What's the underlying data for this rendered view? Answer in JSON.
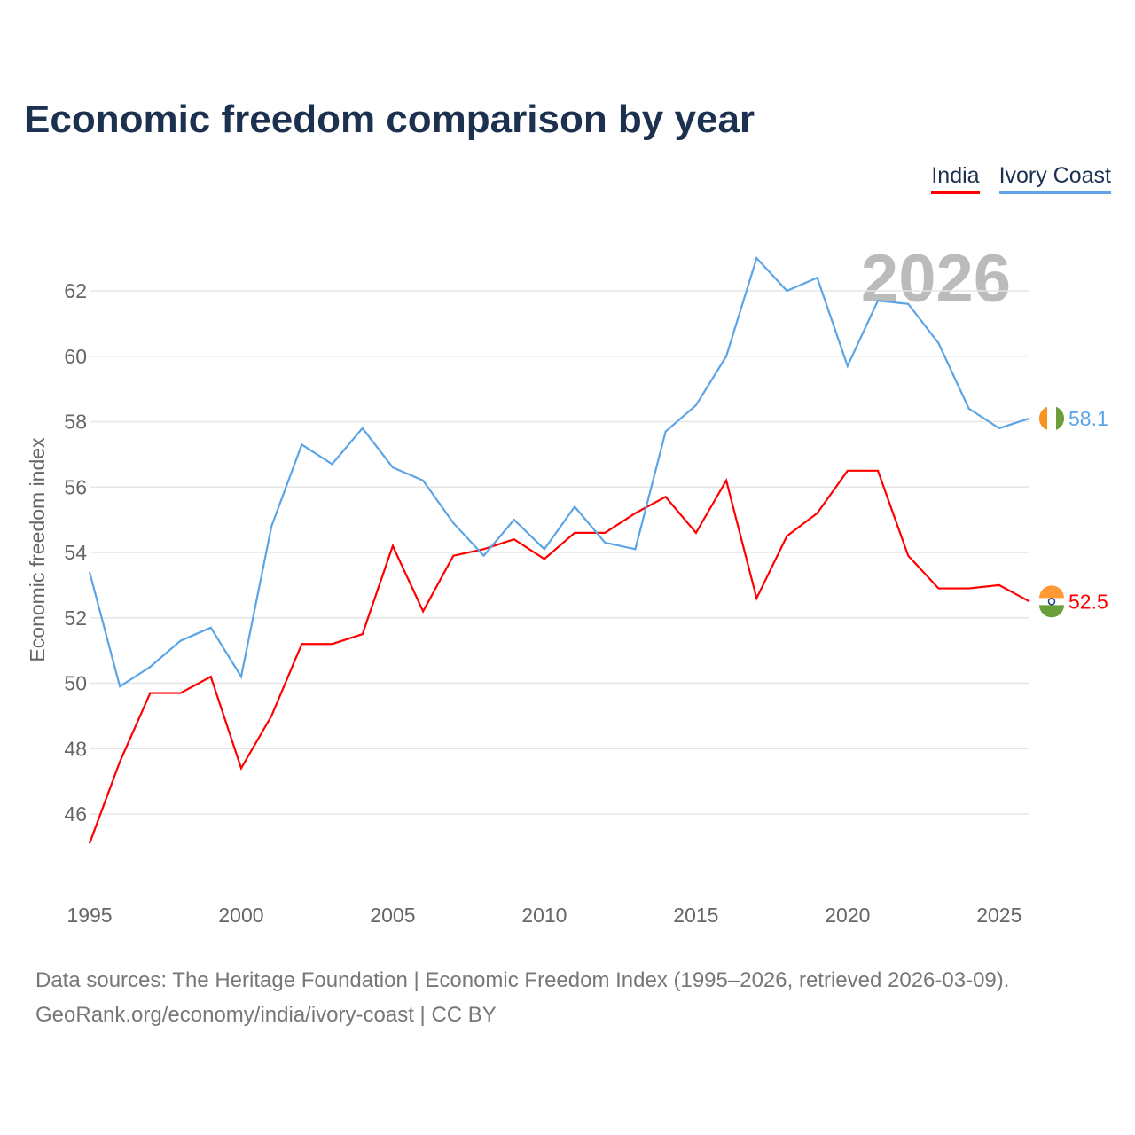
{
  "title": "Economic freedom comparison by year",
  "year_watermark": "2026",
  "footer": {
    "line1": "Data sources: The Heritage Foundation | Economic Freedom Index (1995–2026, retrieved 2026-03-09).",
    "line2": "GeoRank.org/economy/india/ivory-coast | CC BY"
  },
  "chart_data": {
    "type": "line",
    "title": "Economic freedom comparison by year",
    "xlabel": "",
    "ylabel": "Economic freedom index",
    "xlim": [
      1995,
      2026
    ],
    "ylim": [
      44,
      63.5
    ],
    "xticks": [
      1995,
      2000,
      2005,
      2010,
      2015,
      2020,
      2025
    ],
    "yticks": [
      46,
      48,
      50,
      52,
      54,
      56,
      58,
      60,
      62
    ],
    "grid": true,
    "legend_position": "top-right",
    "x": [
      1995,
      1996,
      1997,
      1998,
      1999,
      2000,
      2001,
      2002,
      2003,
      2004,
      2005,
      2006,
      2007,
      2008,
      2009,
      2010,
      2011,
      2012,
      2013,
      2014,
      2015,
      2016,
      2017,
      2018,
      2019,
      2020,
      2021,
      2022,
      2023,
      2024,
      2025,
      2026
    ],
    "series": [
      {
        "name": "India",
        "color": "#ff0000",
        "end_label": "52.5",
        "values": [
          45.1,
          47.6,
          49.7,
          49.7,
          50.2,
          47.4,
          49.0,
          51.2,
          51.2,
          51.5,
          54.2,
          52.2,
          53.9,
          54.1,
          54.4,
          53.8,
          54.6,
          54.6,
          55.2,
          55.7,
          54.6,
          56.2,
          52.6,
          54.5,
          55.2,
          56.5,
          56.5,
          53.9,
          52.9,
          52.9,
          53.0,
          52.5
        ]
      },
      {
        "name": "Ivory Coast",
        "color": "#5ba4e6",
        "end_label": "58.1",
        "values": [
          53.4,
          49.9,
          50.5,
          51.3,
          51.7,
          50.2,
          54.8,
          57.3,
          56.7,
          57.8,
          56.6,
          56.2,
          54.9,
          53.9,
          55.0,
          54.1,
          55.4,
          54.3,
          54.1,
          57.7,
          58.5,
          60.0,
          63.0,
          62.0,
          62.4,
          59.7,
          61.7,
          61.6,
          60.4,
          58.4,
          57.8,
          58.1
        ]
      }
    ]
  }
}
